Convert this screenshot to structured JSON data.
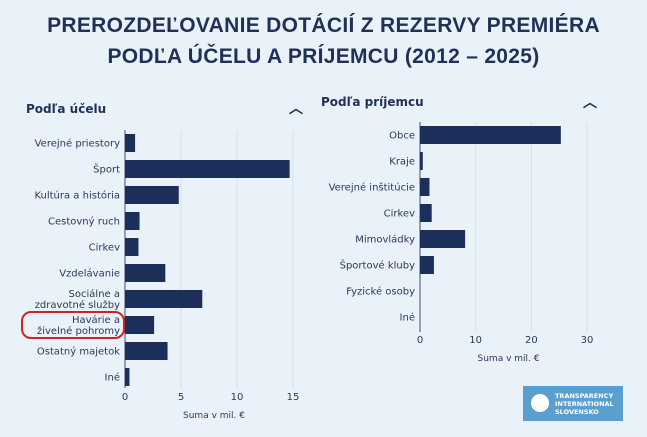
{
  "title_line1": "PREROZDEĽOVANIE DOTÁCIÍ Z REZERVY PREMIÉRA",
  "title_line2": "PODĽA ÚČELU A PRÍJEMCU (2012 – 2025)",
  "colors": {
    "bar": "#1c2f5a",
    "text": "#1f3157",
    "highlight": "#d62020",
    "background": "#e9f1f9"
  },
  "logo": {
    "line1": "TRANSPARENCY",
    "line2": "INTERNATIONAL",
    "line3": "SLOVENSKO"
  },
  "chart_data": [
    {
      "type": "bar",
      "orientation": "horizontal",
      "title": "Podľa účelu",
      "collapse_icon": "chevron-up-icon",
      "categories": [
        "Verejné priestory",
        "Šport",
        "Kultúra a história",
        "Cestovný ruch",
        "Cirkev",
        "Vzdelávanie",
        "Sociálne a zdravotné služby",
        "Havárie a živelné pohromy",
        "Ostatný majetok",
        "Iné"
      ],
      "values": [
        0.9,
        14.7,
        4.8,
        1.3,
        1.2,
        3.6,
        6.9,
        2.6,
        3.8,
        0.4
      ],
      "highlighted_category": "Havárie a živelné pohromy",
      "xlabel": "Suma v mil. €",
      "xticks": [
        0,
        5,
        10,
        15
      ],
      "xlim": [
        0,
        16
      ],
      "grid": true
    },
    {
      "type": "bar",
      "orientation": "horizontal",
      "title": "Podľa príjemcu",
      "collapse_icon": "chevron-up-icon",
      "categories": [
        "Obce",
        "Kraje",
        "Verejné inštitúcie",
        "Cirkev",
        "Mimovládky",
        "Športové kluby",
        "Fyzické osoby",
        "Iné"
      ],
      "values": [
        25.3,
        0.5,
        1.7,
        2.1,
        8.1,
        2.5,
        0,
        0
      ],
      "xlabel": "Suma v mil. €",
      "xticks": [
        0,
        10,
        20,
        30
      ],
      "xlim": [
        0,
        32
      ],
      "grid": true
    }
  ]
}
